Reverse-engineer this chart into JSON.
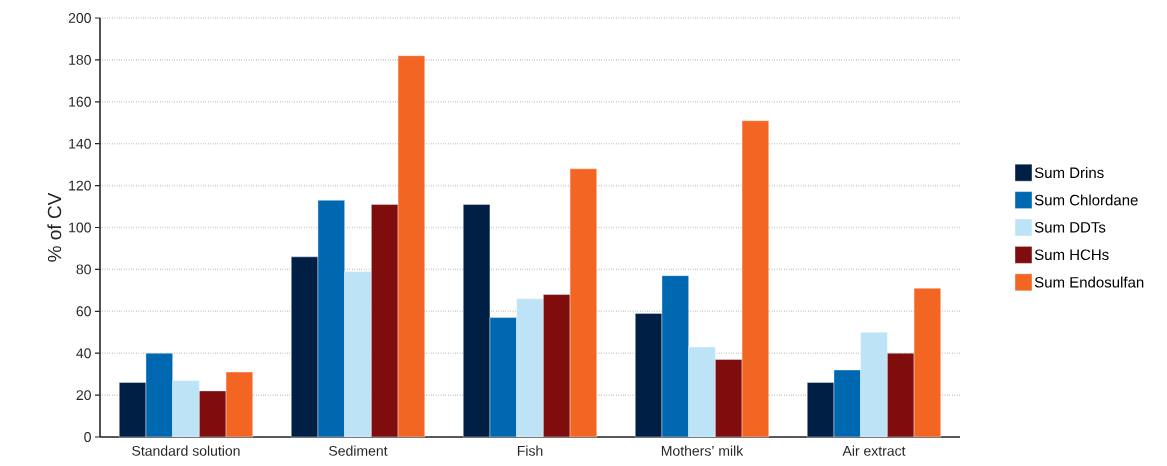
{
  "chart_data": {
    "type": "bar",
    "ylabel": "% of CV",
    "categories": [
      "Standard solution",
      "Sediment",
      "Fish",
      "Mothers’ milk",
      "Air extract"
    ],
    "series": [
      {
        "name": "Sum Drins",
        "color": "#001f45",
        "values": [
          26,
          86,
          111,
          59,
          26
        ]
      },
      {
        "name": "Sum Chlordane",
        "color": "#0067b1",
        "values": [
          40,
          113,
          57,
          77,
          32
        ]
      },
      {
        "name": "Sum DDTs",
        "color": "#bde3f7",
        "values": [
          27,
          79,
          66,
          43,
          50
        ]
      },
      {
        "name": "Sum HCHs",
        "color": "#7f0d0e",
        "values": [
          22,
          111,
          68,
          37,
          40
        ]
      },
      {
        "name": "Sum Endosulfan",
        "color": "#f26522",
        "values": [
          31,
          182,
          128,
          151,
          71
        ]
      }
    ],
    "ylim": [
      0,
      200
    ],
    "yticks": [
      0,
      20,
      40,
      60,
      80,
      100,
      120,
      140,
      160,
      180,
      200
    ],
    "grid": "y",
    "legend": "right"
  }
}
